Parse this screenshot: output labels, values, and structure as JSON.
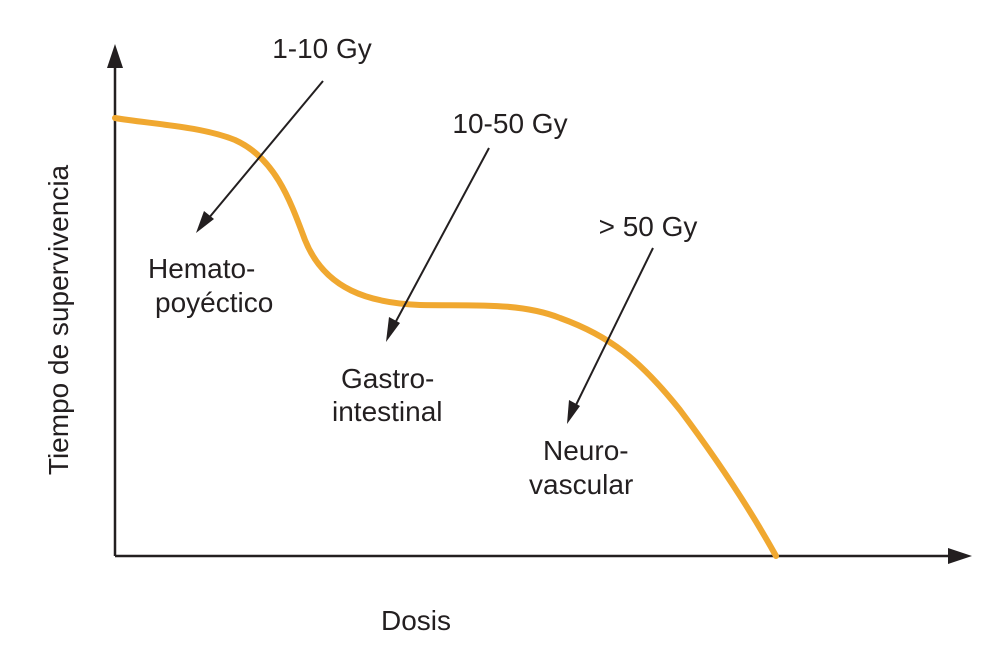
{
  "chart_data": {
    "type": "line",
    "xlabel": "Dosis",
    "ylabel": "Tiempo de supervivencia",
    "grid": false,
    "curve_color": "#f0a830",
    "axis_color": "#231f20",
    "dose_ranges": [
      {
        "range": "1-10 Gy",
        "syndrome_line1": "Hemato-",
        "syndrome_line2": "poyéctico"
      },
      {
        "range": "10-50 Gy",
        "syndrome_line1": "Gastro-",
        "syndrome_line2": "intestinal"
      },
      {
        "range": "> 50 Gy",
        "syndrome_line1": "Neuro-",
        "syndrome_line2": "vascular"
      }
    ]
  }
}
